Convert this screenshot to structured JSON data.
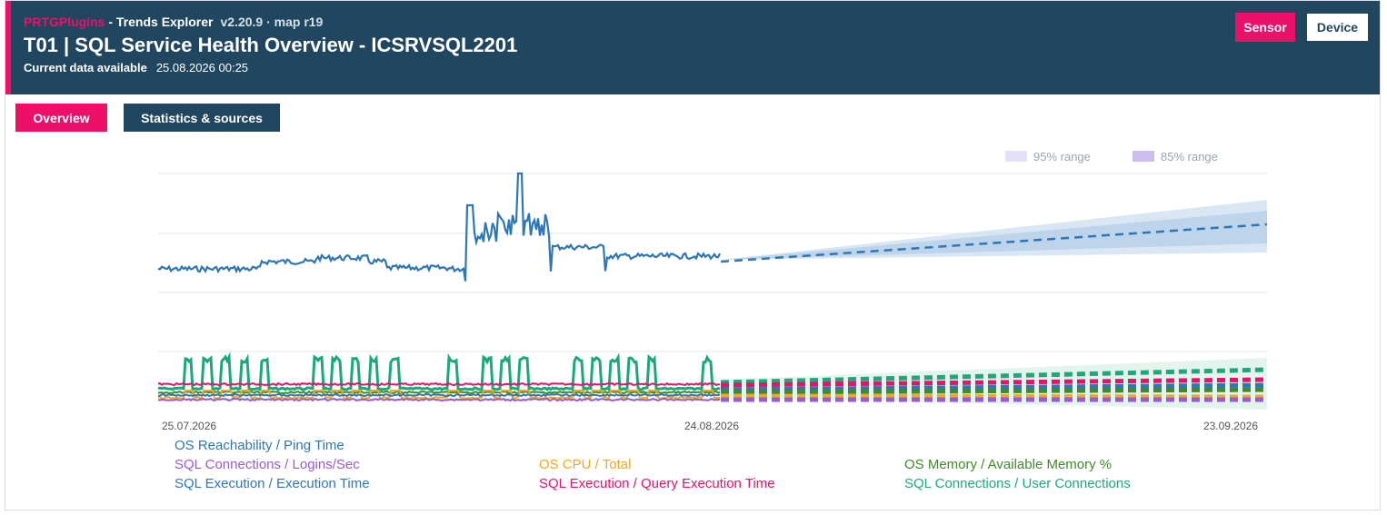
{
  "header": {
    "brand": "PRTGPlugins",
    "app_name": " - Trends Explorer",
    "version": "v2.20.9 · map r19",
    "title": "T01 | SQL Service Health Overview - ICSRVSQL2201",
    "data_label": "Current data available",
    "data_timestamp": "25.08.2026 00:25",
    "buttons": {
      "sensor": "Sensor",
      "device": "Device"
    }
  },
  "tabs": {
    "overview": "Overview",
    "stats": "Statistics & sources"
  },
  "colors": {
    "header_bg": "#214760",
    "accent": "#ec1069"
  },
  "chart_data": {
    "type": "line",
    "x_ticks": [
      "25.07.2026",
      "24.08.2026",
      "23.09.2026"
    ],
    "x_range": [
      "25.07.2026",
      "23.09.2026"
    ],
    "history_end": "24.08.2026",
    "range_legend": [
      {
        "label": "95% range",
        "color": "#e4e0f7"
      },
      {
        "label": "85% range",
        "color": "#cdbcef"
      }
    ],
    "grid": true,
    "legend_placement": "bottom",
    "series": [
      {
        "name": "OS Reachability / Ping Time",
        "color": "#2e77b6"
      },
      {
        "name": "SQL Connections / Logins/Sec",
        "color": "#9b59d6"
      },
      {
        "name": "OS CPU / Total",
        "color": "#f0a81c"
      },
      {
        "name": "OS Memory / Available Memory %",
        "color": "#3f8a2a"
      },
      {
        "name": "SQL Execution / Execution Time",
        "color": "#2e77b6"
      },
      {
        "name": "SQL Execution / Query Execution Time",
        "color": "#ec1069"
      },
      {
        "name": "SQL Connections / User Connections",
        "color": "#1aaa7a"
      }
    ]
  }
}
